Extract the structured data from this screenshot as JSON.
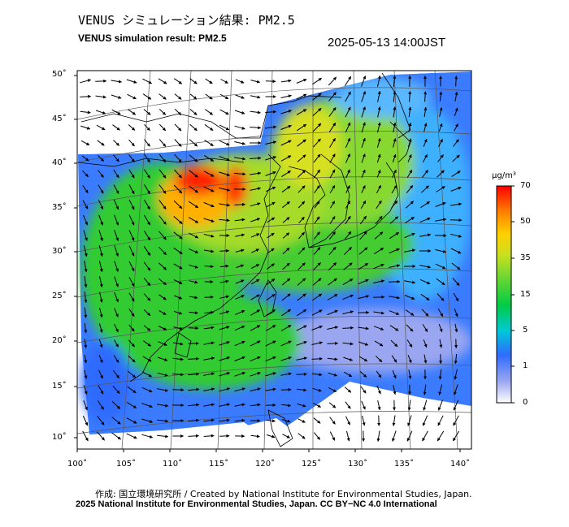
{
  "header": {
    "title_jp": "VENUS シミュレーション結果: PM2.5",
    "title_en": "VENUS simulation result: PM2.5",
    "timestamp": "2025-05-13 14:00JST"
  },
  "map": {
    "lat_ticks": [
      "50˚",
      "45˚",
      "40˚",
      "35˚",
      "30˚",
      "25˚",
      "20˚",
      "15˚",
      "10˚"
    ],
    "lon_ticks": [
      "100˚",
      "105˚",
      "110˚",
      "115˚",
      "120˚",
      "125˚",
      "130˚",
      "135˚",
      "140˚"
    ],
    "lat_range": [
      9,
      51
    ],
    "lon_range": [
      100,
      142
    ],
    "field": "PM2.5 concentration with surface wind vectors"
  },
  "colorbar": {
    "unit": "μg/m³",
    "labels": [
      "70",
      "50",
      "35",
      "15",
      "5",
      "1",
      "0"
    ],
    "colors": [
      "#ff0000",
      "#ff7f00",
      "#ffd700",
      "#9acd32",
      "#00cc33",
      "#00cccc",
      "#3366ff",
      "#aab4ff",
      "#ffffff"
    ]
  },
  "footer": {
    "credit_jp_en": "作成: 国立環境研究所 / Created by National Institute for Environmental Studies, Japan.",
    "copyright": "2025 National Institute for Environmental Studies, Japan. CC BY−NC 4.0 International"
  }
}
